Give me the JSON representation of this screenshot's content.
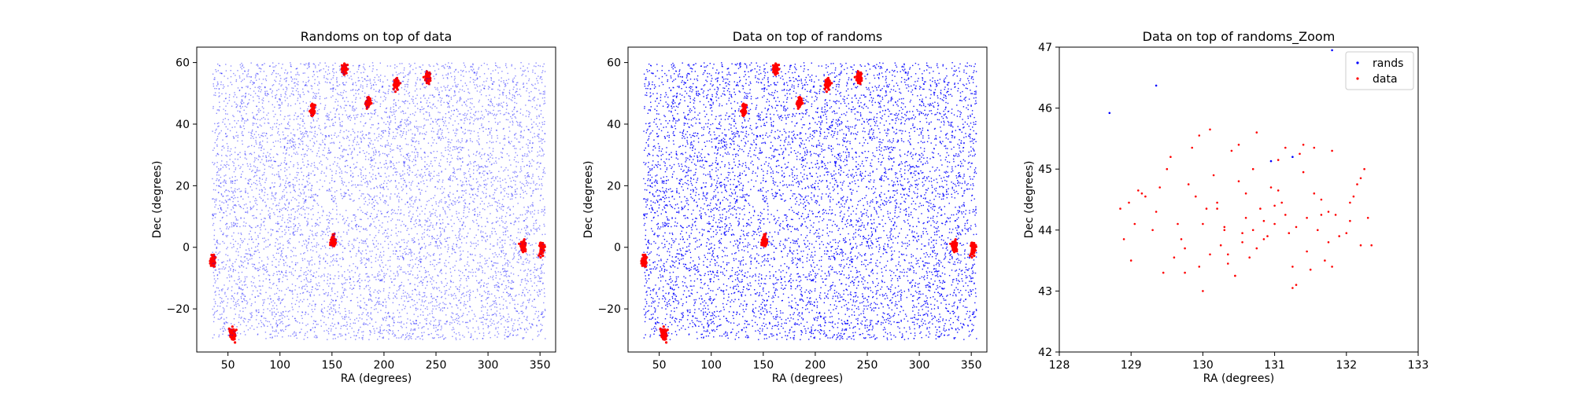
{
  "chart_data": [
    {
      "type": "scatter",
      "title": "Randoms on top of data",
      "xlabel": "RA (degrees)",
      "ylabel": "Dec (degrees)",
      "xlim": [
        20,
        365
      ],
      "ylim": [
        -34,
        65
      ],
      "xticks": [
        50,
        100,
        150,
        200,
        250,
        300,
        350
      ],
      "yticks": [
        -20,
        0,
        20,
        40,
        60
      ],
      "draw_order": [
        "data",
        "rands"
      ],
      "series": [
        {
          "role": "data",
          "color": "#ff0000",
          "style": "clusters",
          "clusters": [
            [
              35.5,
              -4.5
            ],
            [
              54.5,
              -28
            ],
            [
              131.5,
              44.5
            ],
            [
              151,
              2
            ],
            [
              162,
              58
            ],
            [
              185,
              47
            ],
            [
              212,
              53
            ],
            [
              242,
              55
            ],
            [
              334,
              0.5
            ],
            [
              352,
              -0.5
            ]
          ]
        },
        {
          "role": "rands",
          "color": "#0000ff",
          "style": "uniform",
          "alpha": 0.45,
          "region": {
            "x": [
              35,
              355
            ],
            "y": [
              -30,
              60
            ]
          }
        }
      ]
    },
    {
      "type": "scatter",
      "title": "Data on top of randoms",
      "xlabel": "RA (degrees)",
      "ylabel": "Dec (degrees)",
      "xlim": [
        20,
        365
      ],
      "ylim": [
        -34,
        65
      ],
      "xticks": [
        50,
        100,
        150,
        200,
        250,
        300,
        350
      ],
      "yticks": [
        -20,
        0,
        20,
        40,
        60
      ],
      "draw_order": [
        "rands",
        "data"
      ],
      "series": [
        {
          "role": "rands",
          "color": "#0000ff",
          "style": "uniform",
          "alpha": 0.9,
          "region": {
            "x": [
              35,
              355
            ],
            "y": [
              -30,
              60
            ]
          }
        },
        {
          "role": "data",
          "color": "#ff0000",
          "style": "clusters",
          "clusters": [
            [
              35.5,
              -4.5
            ],
            [
              54.5,
              -28
            ],
            [
              131.5,
              44.5
            ],
            [
              151,
              2
            ],
            [
              162,
              58
            ],
            [
              185,
              47
            ],
            [
              212,
              53
            ],
            [
              242,
              55
            ],
            [
              334,
              0.5
            ],
            [
              352,
              -0.5
            ]
          ]
        }
      ]
    },
    {
      "type": "scatter",
      "title": "Data on top of randoms_Zoom",
      "xlabel": "RA (degrees)",
      "ylabel": "Dec (degrees)",
      "xlim": [
        128,
        133
      ],
      "ylim": [
        42,
        47
      ],
      "xticks": [
        128,
        129,
        130,
        131,
        132,
        133
      ],
      "yticks": [
        42,
        43,
        44,
        45,
        46,
        47
      ],
      "legend": {
        "position": "upper right",
        "entries": [
          "rands",
          "data"
        ]
      },
      "series": [
        {
          "name": "rands",
          "color": "#0000ff",
          "x": [
            128.7,
            129.35,
            131.8,
            130.95,
            131.25
          ],
          "y": [
            45.92,
            46.37,
            46.95,
            45.13,
            45.2
          ]
        },
        {
          "name": "data",
          "color": "#ff0000",
          "x": [
            128.97,
            128.9,
            128.85,
            129.05,
            129.0,
            129.1,
            129.2,
            129.15,
            129.3,
            129.35,
            129.45,
            129.5,
            129.55,
            129.6,
            129.7,
            129.75,
            129.8,
            129.85,
            129.95,
            130.0,
            130.05,
            130.1,
            130.15,
            130.2,
            130.25,
            130.3,
            130.35,
            130.4,
            130.45,
            130.5,
            130.55,
            130.6,
            130.65,
            130.7,
            130.75,
            130.8,
            130.85,
            130.9,
            130.95,
            131.0,
            131.05,
            131.1,
            131.15,
            131.2,
            131.25,
            131.3,
            131.35,
            131.4,
            131.45,
            131.5,
            131.55,
            131.6,
            131.65,
            131.7,
            131.75,
            131.8,
            131.85,
            131.9,
            132.0,
            132.05,
            132.1,
            132.15,
            132.2,
            132.25,
            132.3,
            132.35,
            129.95,
            130.1,
            130.3,
            130.45,
            130.6,
            130.85,
            131.05,
            131.3,
            131.55,
            131.8,
            130.2,
            130.5,
            130.75,
            131.15,
            131.4,
            129.65,
            129.9,
            130.35,
            130.7,
            131.0,
            131.45,
            131.75,
            132.05,
            129.4,
            130.0,
            130.55,
            131.25,
            131.65,
            132.2,
            129.75
          ],
          "y": [
            44.45,
            43.85,
            44.35,
            44.1,
            43.5,
            44.65,
            44.55,
            44.6,
            44.0,
            44.3,
            43.3,
            45.0,
            45.2,
            43.55,
            43.85,
            43.3,
            44.75,
            45.35,
            45.55,
            43.0,
            44.35,
            45.65,
            44.9,
            44.45,
            43.75,
            44.05,
            43.6,
            45.3,
            43.25,
            45.4,
            43.8,
            44.6,
            43.55,
            45.0,
            45.6,
            44.35,
            44.15,
            43.9,
            44.7,
            44.1,
            45.15,
            44.45,
            45.35,
            43.95,
            43.4,
            44.05,
            45.25,
            45.4,
            44.2,
            43.35,
            45.35,
            44.0,
            44.25,
            43.5,
            44.3,
            45.3,
            44.25,
            43.9,
            43.95,
            44.45,
            44.55,
            44.75,
            44.85,
            45.0,
            44.2,
            43.75,
            43.4,
            43.6,
            44.0,
            43.25,
            44.2,
            43.85,
            44.65,
            43.1,
            44.6,
            43.4,
            44.35,
            44.8,
            43.7,
            44.25,
            44.95,
            44.1,
            44.55,
            43.45,
            44.0,
            44.4,
            43.65,
            43.8,
            44.15,
            44.7,
            44.1,
            43.95,
            43.05,
            44.5,
            43.75,
            43.7
          ]
        }
      ]
    }
  ]
}
